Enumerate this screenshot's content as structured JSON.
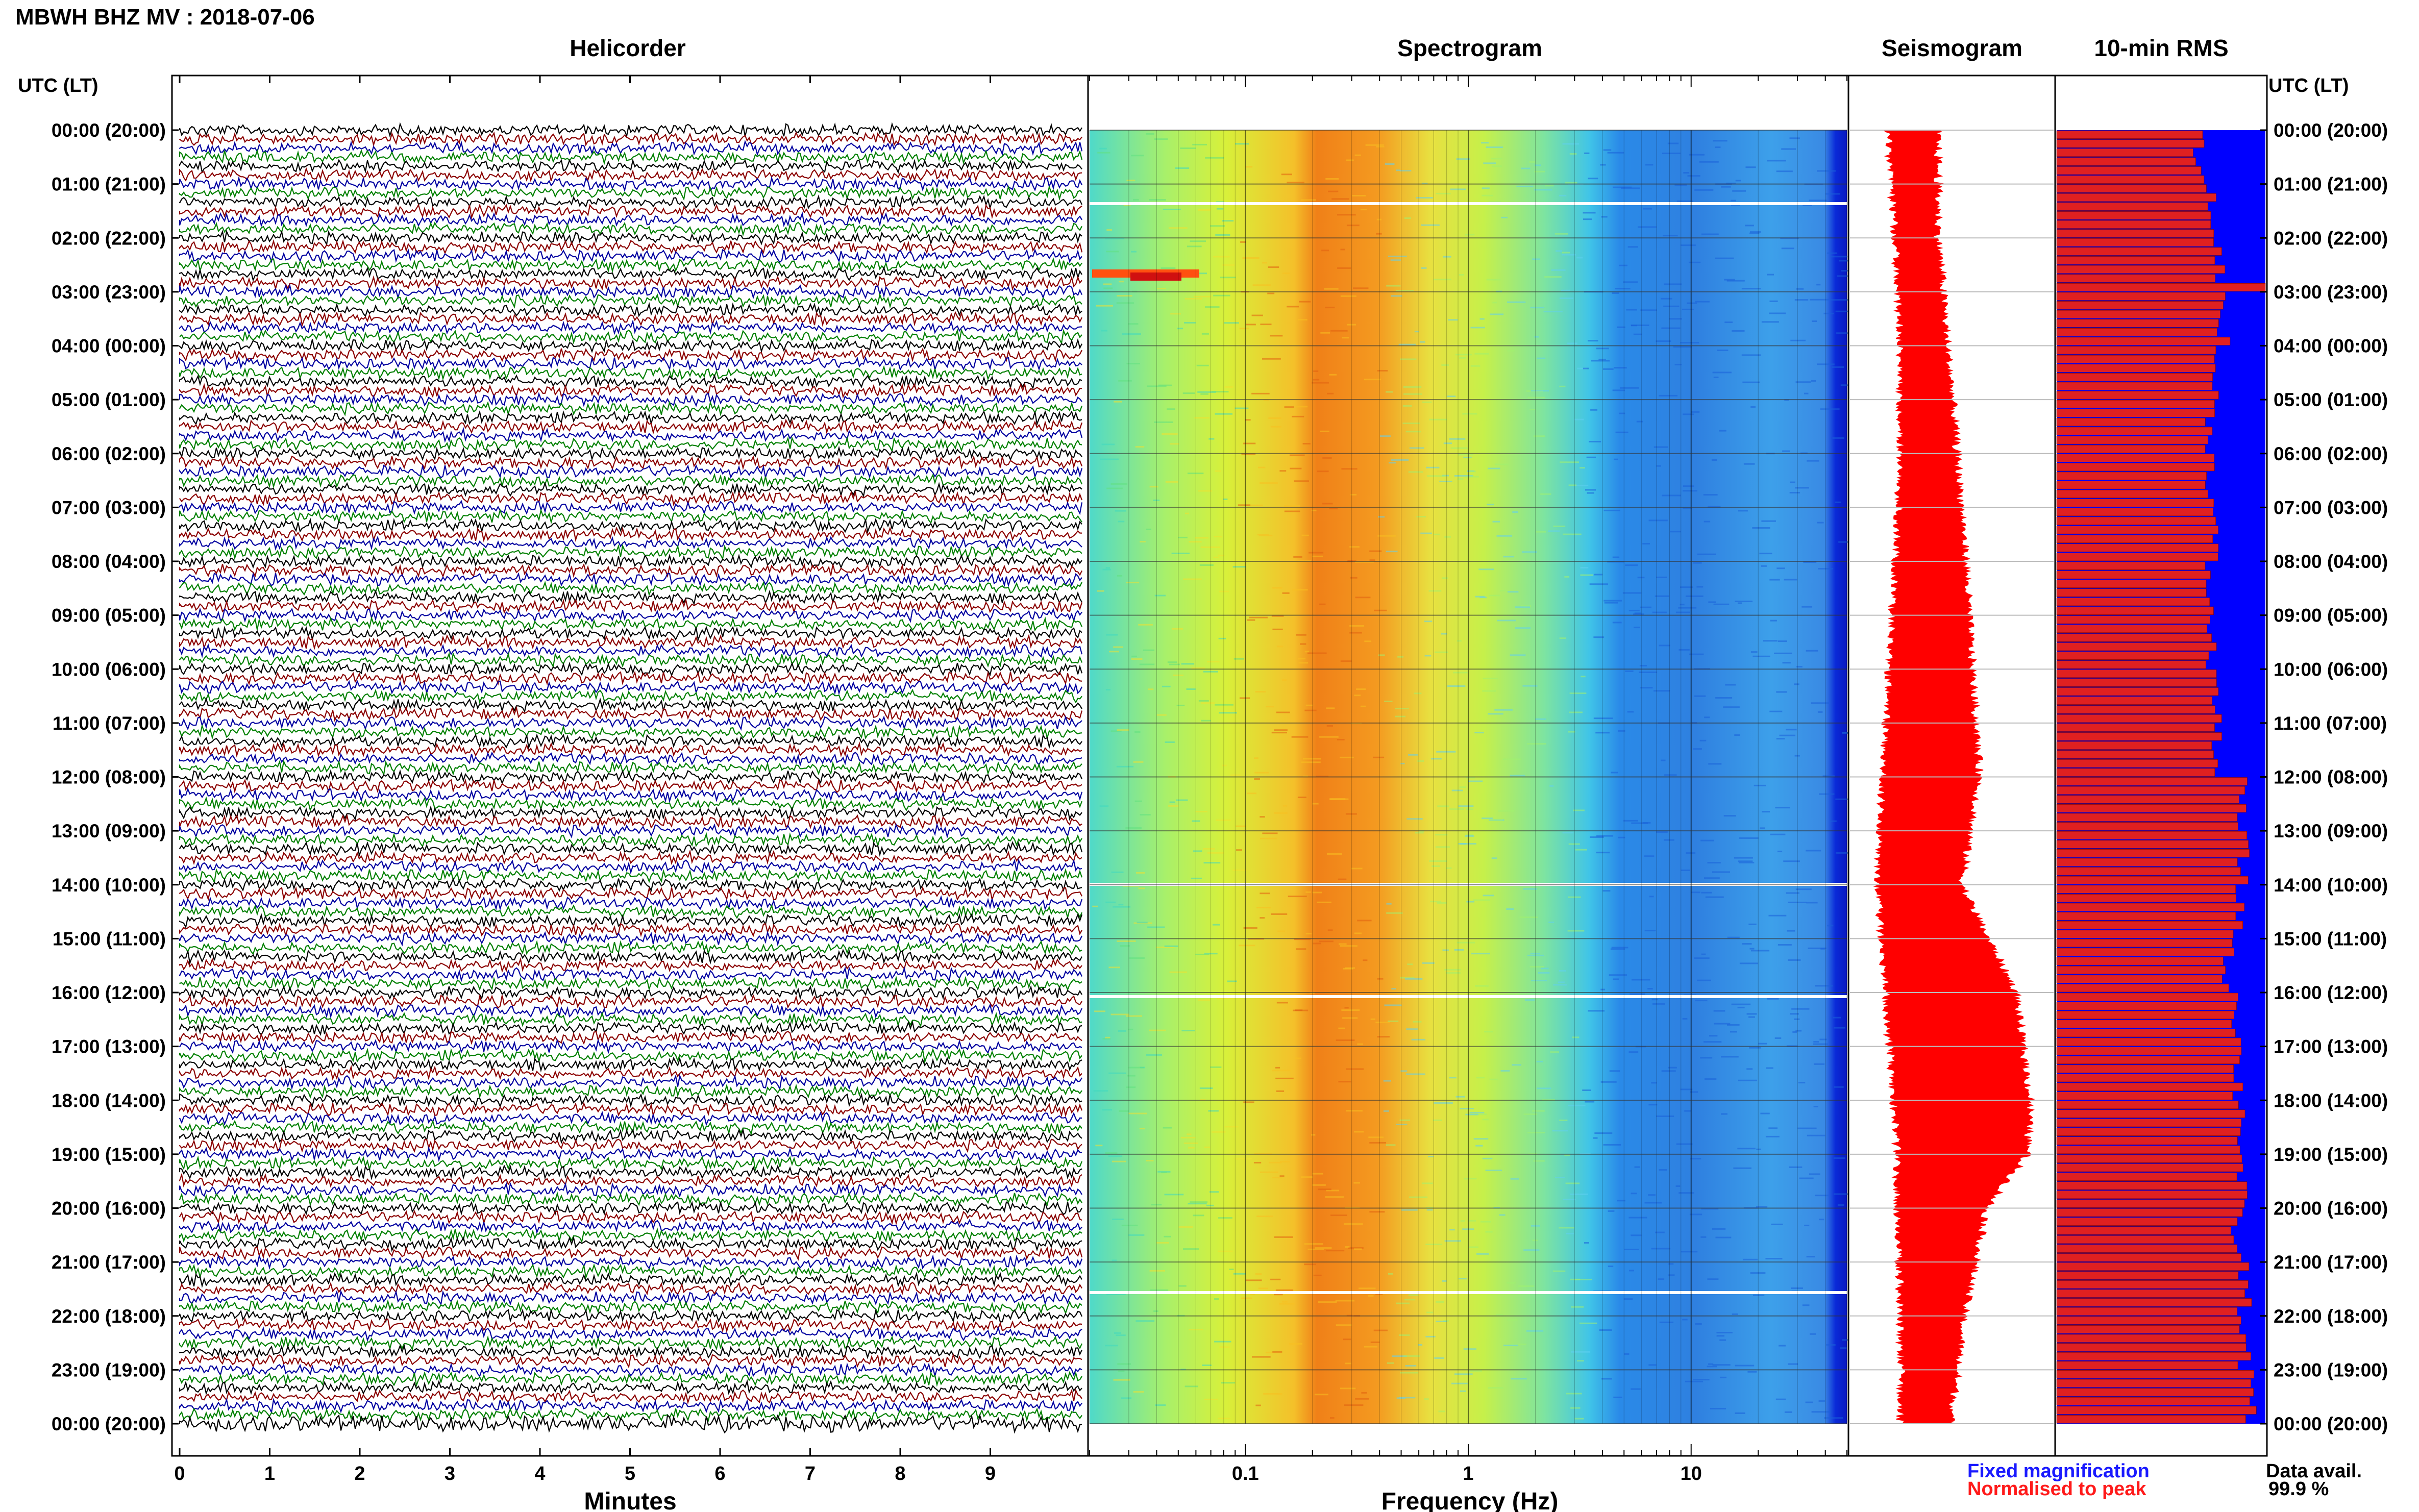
{
  "header": {
    "title": "MBWH BHZ MV : 2018-07-06"
  },
  "panels": {
    "helicorder": "Helicorder",
    "spectrogram": "Spectrogram",
    "seismogram": "Seismogram",
    "rms": "10-min RMS"
  },
  "axis": {
    "time_header_left": "UTC (LT)",
    "time_header_right": "UTC (LT)",
    "time_labels": [
      "00:00 (20:00)",
      "01:00 (21:00)",
      "02:00 (22:00)",
      "03:00 (23:00)",
      "04:00 (00:00)",
      "05:00 (01:00)",
      "06:00 (02:00)",
      "07:00 (03:00)",
      "08:00 (04:00)",
      "09:00 (05:00)",
      "10:00 (06:00)",
      "11:00 (07:00)",
      "12:00 (08:00)",
      "13:00 (09:00)",
      "14:00 (10:00)",
      "15:00 (11:00)",
      "16:00 (12:00)",
      "17:00 (13:00)",
      "18:00 (14:00)",
      "19:00 (15:00)",
      "20:00 (16:00)",
      "21:00 (17:00)",
      "22:00 (18:00)",
      "23:00 (19:00)",
      "00:00 (20:00)"
    ],
    "minutes_label": "Minutes",
    "minutes_ticks": [
      "0",
      "1",
      "2",
      "3",
      "4",
      "5",
      "6",
      "7",
      "8",
      "9"
    ],
    "frequency_label": "Frequency (Hz)",
    "frequency_ticks": [
      "0.1",
      "1",
      "10"
    ]
  },
  "legend": {
    "fixed": "Fixed magnification",
    "normalised": "Normalised to peak",
    "fixed_color": "#1a1aff",
    "normalised_color": "#ff1a1a"
  },
  "availability": {
    "label": "Data avail.",
    "value": "99.9 %"
  },
  "colors": {
    "helicorder_traces": [
      "#000000",
      "#8b0000",
      "#0000a0",
      "#008000"
    ],
    "seismogram": "#ff0000",
    "rms_bar": "#e02020",
    "rms_background": "#0000ff"
  },
  "chart_data": [
    {
      "type": "line",
      "title": "Helicorder",
      "xlabel": "Minutes",
      "xlim": [
        0,
        10
      ],
      "rows_per_hour": 6,
      "hours": 24,
      "series_color_cycle": [
        "black",
        "darkred",
        "darkblue",
        "green"
      ]
    },
    {
      "type": "heatmap",
      "title": "Spectrogram",
      "xlabel": "Frequency (Hz)",
      "xscale": "log",
      "xlim": [
        0.02,
        50
      ],
      "peak_band_hz": [
        0.22,
        0.45
      ],
      "low_noise_band_hz": [
        4,
        40
      ],
      "data_gaps_utc": [
        "01:20",
        "14:00",
        "16:00",
        "21:30"
      ]
    },
    {
      "type": "line",
      "title": "Seismogram",
      "ylabel": "UTC (LT)",
      "amplitude_profile_utc_hours": [
        0,
        2,
        4,
        6,
        8,
        10,
        12,
        14,
        16,
        18,
        19,
        20,
        22,
        24
      ],
      "relative_amplitude": [
        0.3,
        0.25,
        0.28,
        0.35,
        0.45,
        0.55,
        0.65,
        0.55,
        0.9,
        0.95,
        0.9,
        0.6,
        0.4,
        0.3
      ]
    },
    {
      "type": "bar",
      "title": "10-min RMS",
      "bins": 144,
      "relative_rms_hourly": [
        0.68,
        0.74,
        0.78,
        0.8,
        0.76,
        0.74,
        0.74,
        0.75,
        0.73,
        0.74,
        0.76,
        0.77,
        0.88,
        0.89,
        0.88,
        0.82,
        0.87,
        0.87,
        0.89,
        0.88,
        0.86,
        0.9,
        0.9,
        0.92
      ],
      "spike_utc": "02:50",
      "spike_value": 1.0
    }
  ]
}
